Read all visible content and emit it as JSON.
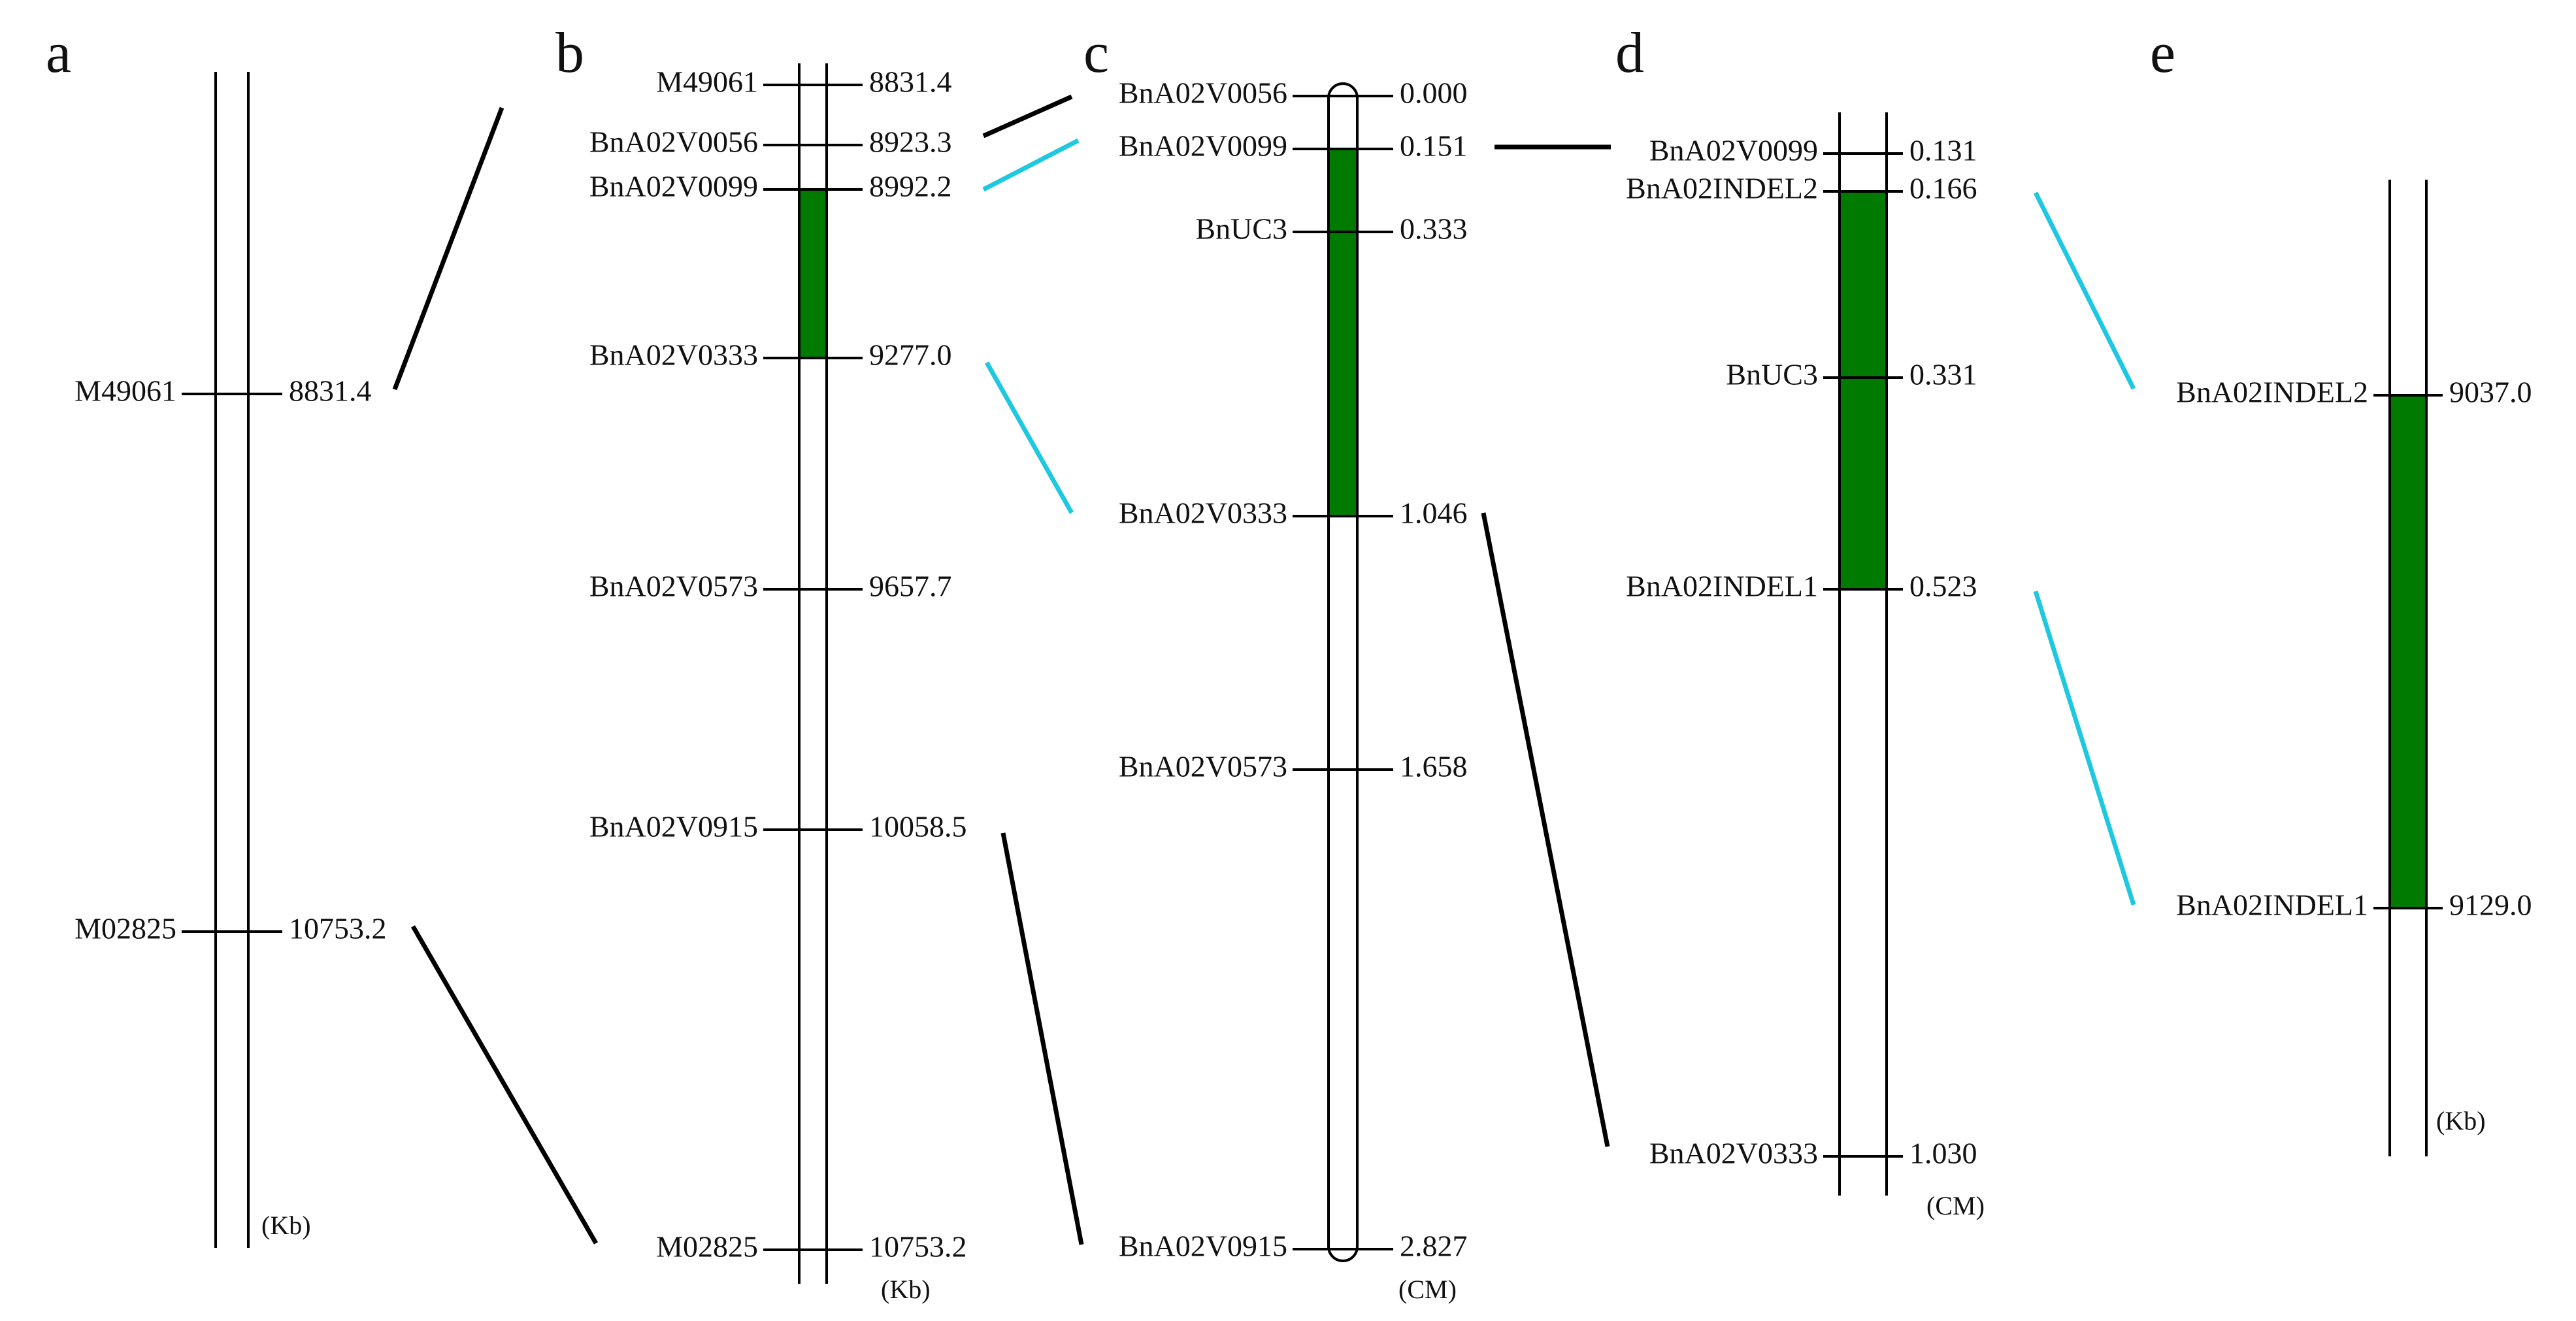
{
  "colors": {
    "region": "#007a00",
    "link_black": "#000000",
    "link_cyan": "#1ec8e0",
    "chromosome": "#000000"
  },
  "panels": [
    {
      "id": "a",
      "label": "a",
      "unit": "(Kb)",
      "markers": [
        {
          "name": "M49061",
          "value": "8831.4"
        },
        {
          "name": "M02825",
          "value": "10753.2"
        }
      ]
    },
    {
      "id": "b",
      "label": "b",
      "unit": "(Kb)",
      "markers": [
        {
          "name": "M49061",
          "value": "8831.4"
        },
        {
          "name": "BnA02V0056",
          "value": "8923.3"
        },
        {
          "name": "BnA02V0099",
          "value": "8992.2"
        },
        {
          "name": "BnA02V0333",
          "value": "9277.0"
        },
        {
          "name": "BnA02V0573",
          "value": "9657.7"
        },
        {
          "name": "BnA02V0915",
          "value": "10058.5"
        },
        {
          "name": "M02825",
          "value": "10753.2"
        }
      ]
    },
    {
      "id": "c",
      "label": "c",
      "unit": "(CM)",
      "markers": [
        {
          "name": "BnA02V0056",
          "value": "0.000"
        },
        {
          "name": "BnA02V0099",
          "value": "0.151"
        },
        {
          "name": "BnUC3",
          "value": "0.333"
        },
        {
          "name": "BnA02V0333",
          "value": "1.046"
        },
        {
          "name": "BnA02V0573",
          "value": "1.658"
        },
        {
          "name": "BnA02V0915",
          "value": "2.827"
        }
      ]
    },
    {
      "id": "d",
      "label": "d",
      "unit": "(CM)",
      "markers": [
        {
          "name": "BnA02V0099",
          "value": "0.131"
        },
        {
          "name": "BnA02INDEL2",
          "value": "0.166"
        },
        {
          "name": "BnUC3",
          "value": "0.331"
        },
        {
          "name": "BnA02INDEL1",
          "value": "0.523"
        },
        {
          "name": "BnA02V0333",
          "value": "1.030"
        }
      ]
    },
    {
      "id": "e",
      "label": "e",
      "unit": "(Kb)",
      "markers": [
        {
          "name": "BnA02INDEL2",
          "value": "9037.0"
        },
        {
          "name": "BnA02INDEL1",
          "value": "9129.0"
        }
      ]
    }
  ],
  "mapped_regions": [
    {
      "panel": "b",
      "from": "BnA02V0099",
      "to": "BnA02V0333"
    },
    {
      "panel": "c",
      "from": "BnA02V0099",
      "to": "BnA02V0333"
    },
    {
      "panel": "d",
      "from": "BnA02INDEL2",
      "to": "BnA02INDEL1"
    },
    {
      "panel": "e",
      "from": "BnA02INDEL2",
      "to": "BnA02INDEL1"
    }
  ],
  "connections": [
    {
      "from_panel": "a",
      "from_marker": "M49061",
      "to_panel": "b",
      "to_marker": "region-top",
      "color": "black"
    },
    {
      "from_panel": "a",
      "from_marker": "M02825",
      "to_panel": "b",
      "to_marker": "M02825",
      "color": "black"
    },
    {
      "from_panel": "b",
      "from_marker": "BnA02V0056",
      "to_panel": "c",
      "to_marker": "BnA02V0056",
      "color": "black"
    },
    {
      "from_panel": "b",
      "from_marker": "BnA02V0099",
      "to_panel": "c",
      "to_marker": "BnA02V0099",
      "color": "cyan"
    },
    {
      "from_panel": "b",
      "from_marker": "BnA02V0333",
      "to_panel": "c",
      "to_marker": "BnA02V0333",
      "color": "cyan"
    },
    {
      "from_panel": "b",
      "from_marker": "BnA02V0915",
      "to_panel": "c",
      "to_marker": "BnA02V0915",
      "color": "black"
    },
    {
      "from_panel": "c",
      "from_marker": "BnA02V0099",
      "to_panel": "d",
      "to_marker": "BnA02V0099",
      "color": "black"
    },
    {
      "from_panel": "c",
      "from_marker": "BnA02V0333",
      "to_panel": "d",
      "to_marker": "BnA02V0333",
      "color": "black"
    },
    {
      "from_panel": "d",
      "from_marker": "BnA02INDEL2",
      "to_panel": "e",
      "to_marker": "BnA02INDEL2",
      "color": "cyan"
    },
    {
      "from_panel": "d",
      "from_marker": "BnA02INDEL1",
      "to_panel": "e",
      "to_marker": "BnA02INDEL1",
      "color": "cyan"
    }
  ]
}
